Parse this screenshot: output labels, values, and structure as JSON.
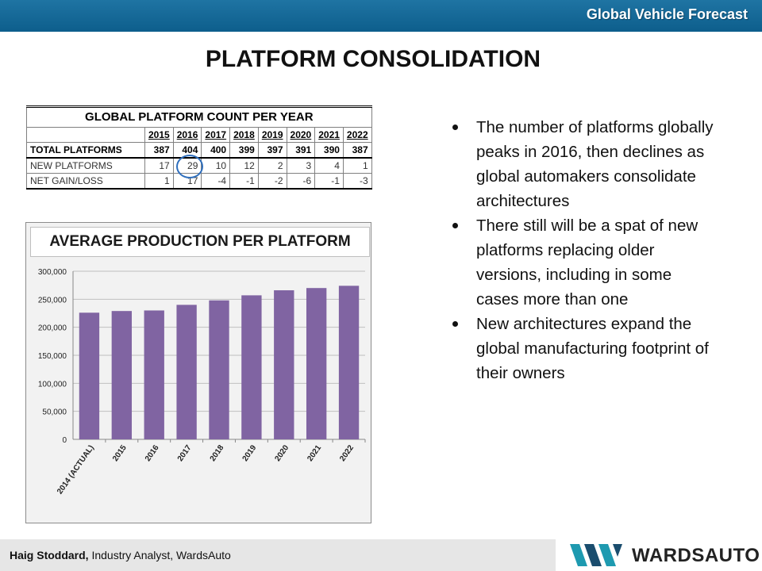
{
  "header": {
    "top_title": "Global Vehicle Forecast",
    "slide_title": "PLATFORM CONSOLIDATION"
  },
  "platform_table": {
    "title": "GLOBAL PLATFORM COUNT PER YEAR",
    "years": [
      "2015",
      "2016",
      "2017",
      "2018",
      "2019",
      "2020",
      "2021",
      "2022"
    ],
    "rows": [
      {
        "label": "TOTAL PLATFORMS",
        "values": [
          "387",
          "404",
          "400",
          "399",
          "397",
          "391",
          "390",
          "387"
        ]
      },
      {
        "label": "NEW PLATFORMS",
        "values": [
          "17",
          "29",
          "10",
          "12",
          "2",
          "3",
          "4",
          "1"
        ]
      },
      {
        "label": "NET GAIN/LOSS",
        "values": [
          "1",
          "17",
          "-4",
          "-1",
          "-2",
          "-6",
          "-1",
          "-3"
        ]
      }
    ]
  },
  "chart_data": {
    "type": "bar",
    "title": "AVERAGE PRODUCTION PER PLATFORM",
    "categories": [
      "2014 (ACTUAL)",
      "2015",
      "2016",
      "2017",
      "2018",
      "2019",
      "2020",
      "2021",
      "2022"
    ],
    "values": [
      226000,
      229000,
      230000,
      240000,
      248000,
      257000,
      266000,
      270000,
      274000
    ],
    "ylim": [
      0,
      300000
    ],
    "yticks": [
      "0",
      "50,000",
      "100,000",
      "150,000",
      "200,000",
      "250,000",
      "300,000"
    ],
    "xlabel": "",
    "ylabel": "",
    "grid": true,
    "bar_color": "#8064a2"
  },
  "bullets": [
    "The number of platforms globally peaks in 2016, then declines as global automakers consolidate architectures",
    "There still will be a spat of new platforms replacing older versions, including in some cases more than one",
    "New architectures expand the global manufacturing footprint of their owners"
  ],
  "footer": {
    "name": "Haig Stoddard,",
    "role": " Industry Analyst, WardsAuto",
    "logo_text": "WARDSAUTO"
  },
  "colors": {
    "top_bar": "#0d5e8c",
    "bar": "#8064a2",
    "highlight": "#2f6fbd",
    "logo_teal": "#1e9ab0",
    "logo_dark": "#1a4d6e"
  }
}
